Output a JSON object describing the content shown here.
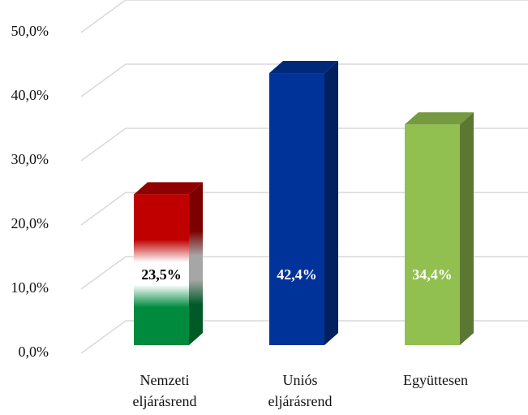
{
  "chart_data": {
    "type": "bar3d",
    "categories": [
      "Nemzeti eljárásrend",
      "Uniós eljárásrend",
      "Együttesen"
    ],
    "values": [
      23.5,
      42.4,
      34.4
    ],
    "value_labels": [
      "23,5%",
      "42,4%",
      "34,4%"
    ],
    "colors": [
      [
        "#c00000",
        "#ffffff",
        "#008a3e"
      ],
      "#003399",
      "#92c050"
    ],
    "label_colors": [
      "#000000",
      "#ffffff",
      "#ffffff"
    ],
    "ylim": [
      0,
      50
    ],
    "yticks": [
      {
        "value": 0,
        "label": "0,0%"
      },
      {
        "value": 10,
        "label": "10,0%"
      },
      {
        "value": 20,
        "label": "20,0%"
      },
      {
        "value": 30,
        "label": "30,0%"
      },
      {
        "value": 40,
        "label": "40,0%"
      },
      {
        "value": 50,
        "label": "50,0%"
      }
    ],
    "grid": true
  }
}
